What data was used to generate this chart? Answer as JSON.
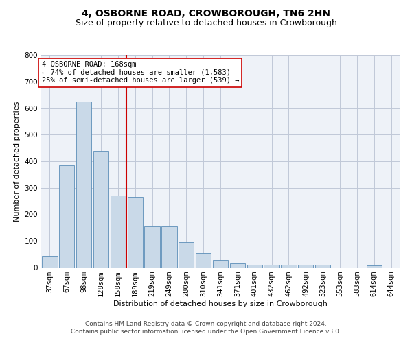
{
  "title": "4, OSBORNE ROAD, CROWBOROUGH, TN6 2HN",
  "subtitle": "Size of property relative to detached houses in Crowborough",
  "xlabel": "Distribution of detached houses by size in Crowborough",
  "ylabel": "Number of detached properties",
  "footer_line1": "Contains HM Land Registry data © Crown copyright and database right 2024.",
  "footer_line2": "Contains public sector information licensed under the Open Government Licence v3.0.",
  "categories": [
    "37sqm",
    "67sqm",
    "98sqm",
    "128sqm",
    "158sqm",
    "189sqm",
    "219sqm",
    "249sqm",
    "280sqm",
    "310sqm",
    "341sqm",
    "371sqm",
    "401sqm",
    "432sqm",
    "462sqm",
    "492sqm",
    "523sqm",
    "553sqm",
    "583sqm",
    "614sqm",
    "644sqm"
  ],
  "values": [
    45,
    385,
    625,
    440,
    270,
    265,
    155,
    155,
    95,
    55,
    28,
    15,
    10,
    10,
    10,
    10,
    10,
    0,
    0,
    8,
    0
  ],
  "bar_color": "#c9d9e8",
  "bar_edge_color": "#5b8db8",
  "vline_x": 4.5,
  "vline_color": "#cc0000",
  "annotation_text": "4 OSBORNE ROAD: 168sqm\n← 74% of detached houses are smaller (1,583)\n25% of semi-detached houses are larger (539) →",
  "annotation_box_color": "#ffffff",
  "annotation_box_edge": "#cc0000",
  "ylim": [
    0,
    800
  ],
  "yticks": [
    0,
    100,
    200,
    300,
    400,
    500,
    600,
    700,
    800
  ],
  "grid_color": "#c0c8d8",
  "background_color": "#eef2f8",
  "title_fontsize": 10,
  "subtitle_fontsize": 9,
  "axis_fontsize": 8,
  "tick_fontsize": 7.5,
  "footer_fontsize": 6.5
}
